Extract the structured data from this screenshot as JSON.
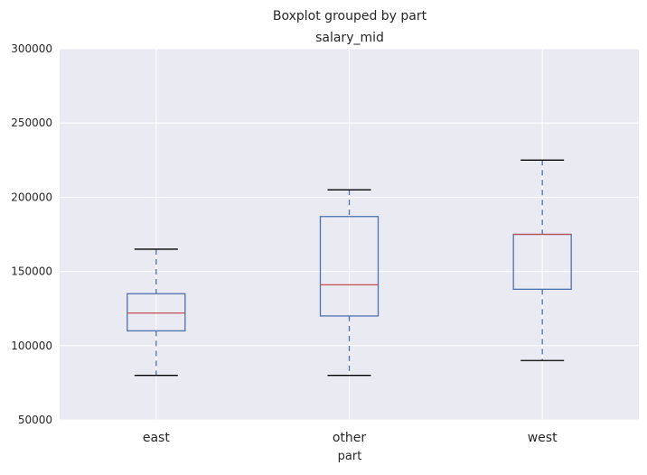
{
  "chart_data": {
    "type": "boxplot",
    "suptitle": "Boxplot grouped by part",
    "title": "salary_mid",
    "xlabel": "part",
    "ylabel": "",
    "ylim": [
      50000,
      300000
    ],
    "yticks": [
      50000,
      100000,
      150000,
      200000,
      250000,
      300000
    ],
    "ytick_labels": [
      "50000",
      "100000",
      "150000",
      "200000",
      "250000",
      "300000"
    ],
    "grid": true,
    "categories": [
      "east",
      "other",
      "west"
    ],
    "boxes": [
      {
        "category": "east",
        "whisker_low": 80000,
        "q1": 110000,
        "median": 122000,
        "q3": 135000,
        "whisker_high": 165000
      },
      {
        "category": "other",
        "whisker_low": 80000,
        "q1": 120000,
        "median": 141000,
        "q3": 187000,
        "whisker_high": 205000
      },
      {
        "category": "west",
        "whisker_low": 90000,
        "q1": 138000,
        "median": 175000,
        "q3": 175000,
        "whisker_high": 225000
      }
    ],
    "colors": {
      "plot_background": "#eaeaf2",
      "grid": "#ffffff",
      "box": "#4c72b0",
      "median": "#c44e52",
      "caps": "#000000"
    }
  }
}
